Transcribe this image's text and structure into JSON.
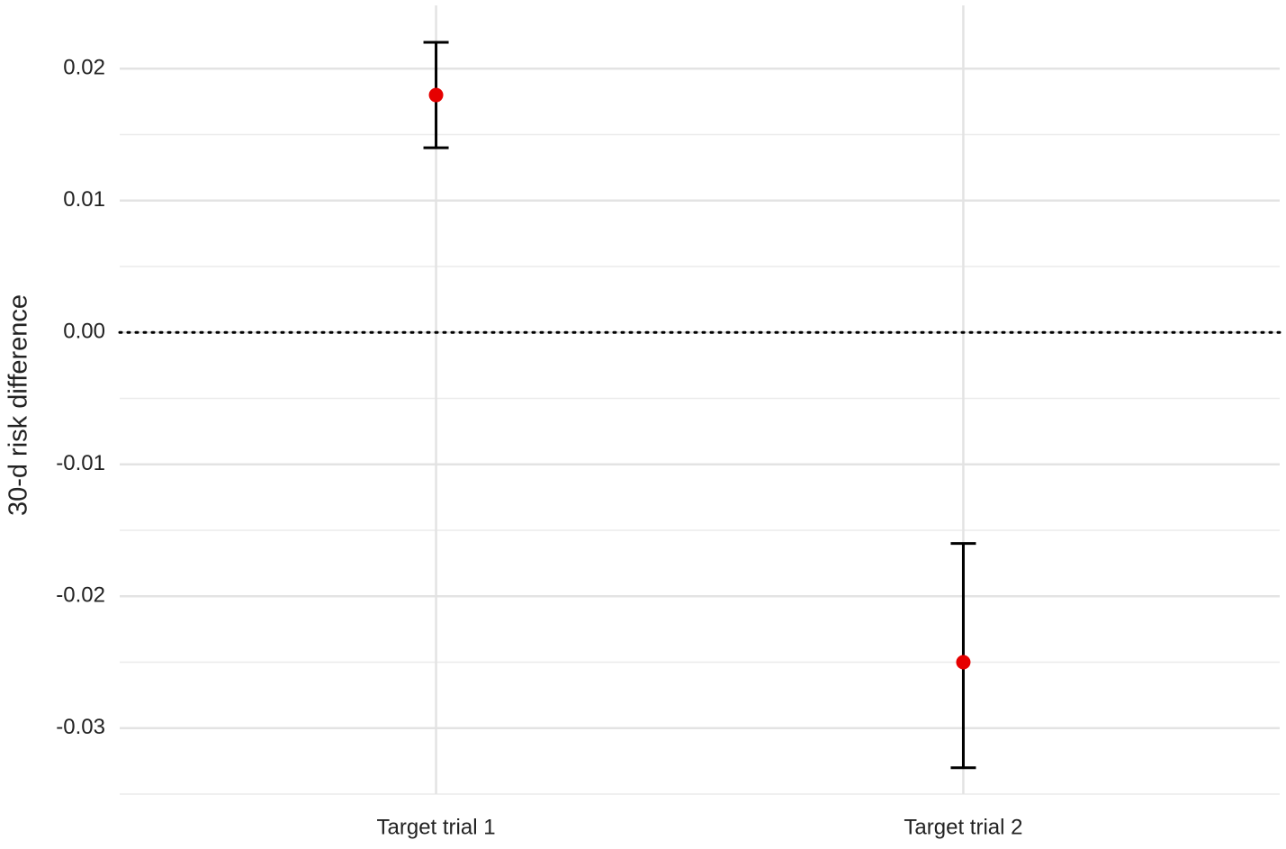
{
  "chart_data": {
    "type": "errorbar",
    "y_label": "30-d risk difference",
    "categories": [
      "Target trial 1",
      "Target trial 2"
    ],
    "values": [
      0.018,
      -0.025
    ],
    "lower": [
      0.014,
      -0.033
    ],
    "upper": [
      0.022,
      -0.016
    ],
    "color": "#e60000",
    "ylim": [
      -0.035,
      0.025
    ],
    "yticks": [
      {
        "value": -0.03,
        "label": "-0.03"
      },
      {
        "value": -0.02,
        "label": "-0.02"
      },
      {
        "value": -0.01,
        "label": "-0.01"
      },
      {
        "value": 0,
        "label": "0.00"
      },
      {
        "value": 0.01,
        "label": "0.01"
      },
      {
        "value": 0.02,
        "label": "0.02"
      }
    ],
    "yminor": [
      -0.035,
      -0.025,
      -0.015,
      -0.005,
      0.005,
      0.015
    ],
    "hline": 0,
    "grid": true
  }
}
